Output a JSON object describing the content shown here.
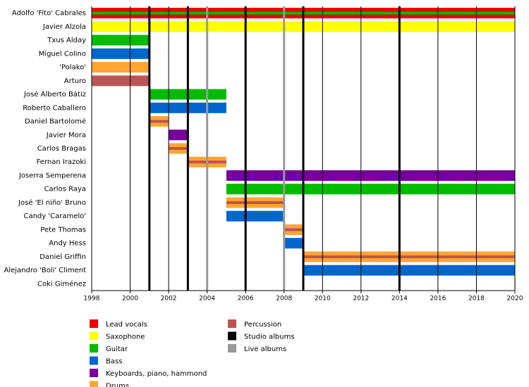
{
  "chart_data": {
    "type": "timeline",
    "xlim": [
      1998,
      2020
    ],
    "xticks": [
      1998,
      2000,
      2002,
      2004,
      2006,
      2008,
      2010,
      2012,
      2014,
      2016,
      2018,
      2020
    ],
    "grid": true,
    "rows": [
      {
        "name": "Adolfo 'Fito' Cabrales",
        "bars": [
          {
            "start": 1998,
            "end": 2020,
            "color": "#ee0000",
            "stripe": "#00bb00"
          }
        ]
      },
      {
        "name": "Javier Alzola",
        "bars": [
          {
            "start": 1998,
            "end": 2020,
            "color": "#ffff00"
          }
        ]
      },
      {
        "name": "Txus Alday",
        "bars": [
          {
            "start": 1998,
            "end": 2001,
            "color": "#00bb00"
          }
        ]
      },
      {
        "name": "Miguel Colino",
        "bars": [
          {
            "start": 1998,
            "end": 2001,
            "color": "#0066cc"
          }
        ]
      },
      {
        "name": "'Polako'",
        "bars": [
          {
            "start": 1998,
            "end": 2001,
            "color": "#ffa533"
          }
        ]
      },
      {
        "name": "Arturo",
        "bars": [
          {
            "start": 1998,
            "end": 2001,
            "color": "#bb5555"
          }
        ]
      },
      {
        "name": "José Alberto Bátiz",
        "bars": [
          {
            "start": 2001,
            "end": 2005,
            "color": "#00bb00"
          }
        ]
      },
      {
        "name": "Roberto Caballero",
        "bars": [
          {
            "start": 2001,
            "end": 2005,
            "color": "#0066cc"
          }
        ]
      },
      {
        "name": "Daniel Bartolomé",
        "bars": [
          {
            "start": 2001,
            "end": 2002,
            "color": "#ffa533",
            "stripe": "#bb5555"
          }
        ]
      },
      {
        "name": "Javier Mora",
        "bars": [
          {
            "start": 2002,
            "end": 2003,
            "color": "#770099"
          }
        ]
      },
      {
        "name": "Carlos Bragas",
        "bars": [
          {
            "start": 2002,
            "end": 2003,
            "color": "#ffa533",
            "stripe": "#bb5555"
          }
        ]
      },
      {
        "name": "Fernan Irazoki",
        "bars": [
          {
            "start": 2003,
            "end": 2005,
            "color": "#ffa533",
            "stripe": "#bb5555"
          }
        ]
      },
      {
        "name": "Joserra Semperena",
        "bars": [
          {
            "start": 2005,
            "end": 2020,
            "color": "#770099"
          }
        ]
      },
      {
        "name": "Carlos Raya",
        "bars": [
          {
            "start": 2005,
            "end": 2020,
            "color": "#00bb00"
          }
        ]
      },
      {
        "name": "José 'El niño' Bruno",
        "bars": [
          {
            "start": 2005,
            "end": 2008,
            "color": "#ffa533",
            "stripe": "#bb5555"
          }
        ]
      },
      {
        "name": "Candy 'Caramelo'",
        "bars": [
          {
            "start": 2005,
            "end": 2008,
            "color": "#0066cc"
          }
        ]
      },
      {
        "name": "Pete Thomas",
        "bars": [
          {
            "start": 2008,
            "end": 2009,
            "color": "#ffa533",
            "stripe": "#bb5555"
          }
        ]
      },
      {
        "name": "Andy Hess",
        "bars": [
          {
            "start": 2008,
            "end": 2009,
            "color": "#0066cc"
          }
        ]
      },
      {
        "name": "Daniel Griffin",
        "bars": [
          {
            "start": 2009,
            "end": 2020,
            "color": "#ffa533",
            "stripe": "#bb5555"
          }
        ]
      },
      {
        "name": "Alejandro 'Boli' Climent",
        "bars": [
          {
            "start": 2009,
            "end": 2020,
            "color": "#0066cc"
          }
        ]
      },
      {
        "name": "Coki Giménez",
        "bars": [
          {
            "start": 2020,
            "end": 2020,
            "color": "#ffa533"
          }
        ]
      }
    ],
    "album_lines": [
      {
        "color": "#000000",
        "years": [
          2001,
          2003,
          2006,
          2009,
          2014
        ]
      },
      {
        "color": "#999999",
        "years": [
          2004,
          2008
        ]
      }
    ],
    "legend": [
      {
        "name": "Lead vocals",
        "color": "#ee0000"
      },
      {
        "name": "Saxophone",
        "color": "#ffff00"
      },
      {
        "name": "Guitar",
        "color": "#00bb00"
      },
      {
        "name": "Bass",
        "color": "#0066cc"
      },
      {
        "name": "Keyboards, piano, hammond",
        "color": "#770099"
      },
      {
        "name": "Drums",
        "color": "#ffa533"
      },
      {
        "name": "Percussion",
        "color": "#bb5555"
      },
      {
        "name": "Studio albums",
        "color": "#000000"
      },
      {
        "name": "Live albums",
        "color": "#999999"
      }
    ]
  }
}
